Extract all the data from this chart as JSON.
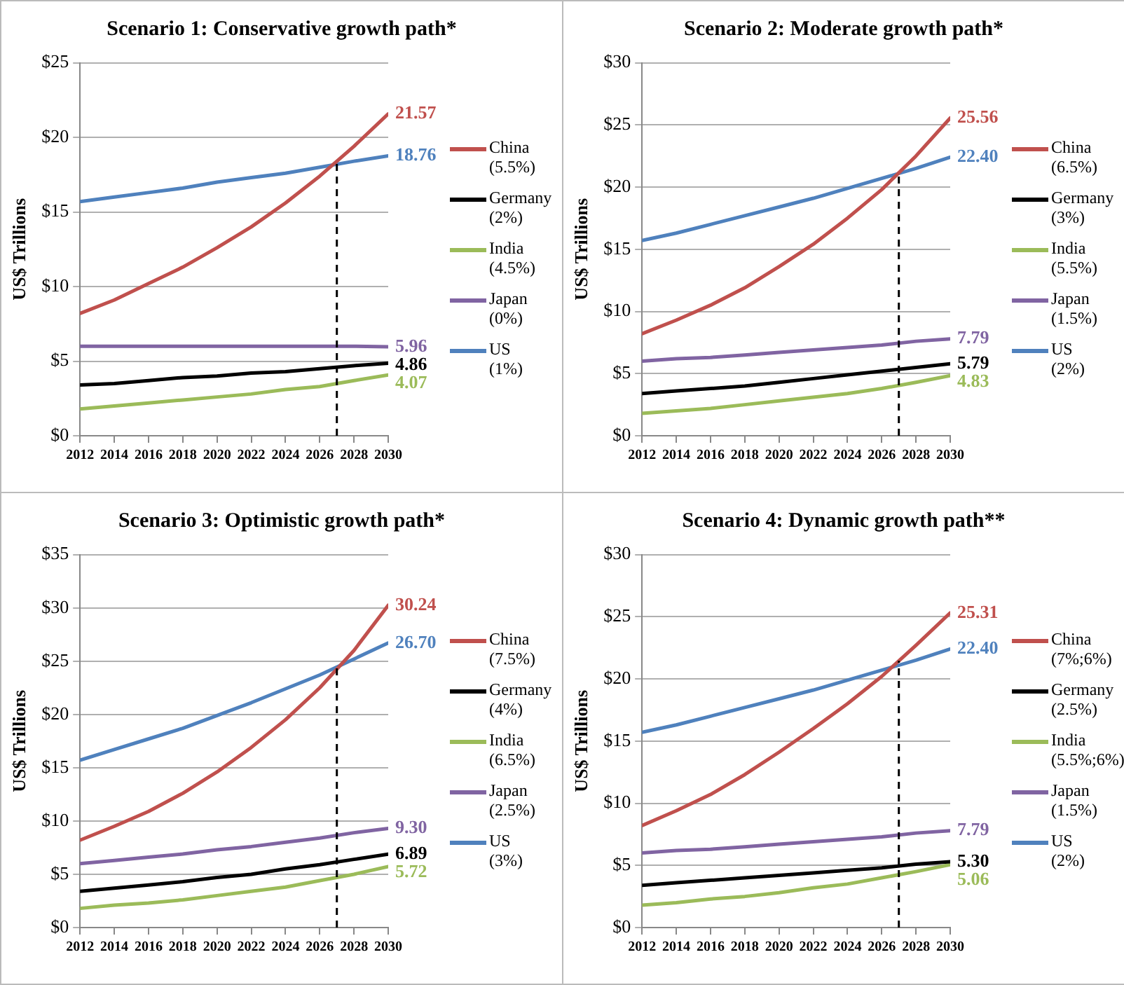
{
  "chart_data": [
    {
      "type": "line",
      "title": "Scenario 1: Conservative growth path*",
      "ylabel": "US$ Trillions",
      "x": [
        2012,
        2014,
        2016,
        2018,
        2020,
        2022,
        2024,
        2026,
        2028,
        2030
      ],
      "xlim": [
        2012,
        2030
      ],
      "xticks": [
        2012,
        2014,
        2016,
        2018,
        2020,
        2022,
        2024,
        2026,
        2028,
        2030
      ],
      "ylim": [
        0,
        25
      ],
      "yticks": [
        {
          "value": 0,
          "label": "$0"
        },
        {
          "value": 5,
          "label": "$5"
        },
        {
          "value": 10,
          "label": "$10"
        },
        {
          "value": 15,
          "label": "$15"
        },
        {
          "value": 20,
          "label": "$20"
        },
        {
          "value": 25,
          "label": "$25"
        }
      ],
      "grid": "y",
      "legend": "right",
      "marker": "none",
      "line_style": "solid",
      "ref_lines": [
        {
          "axis": "x",
          "value": 2027,
          "color": "#000000",
          "line_style": "dashed"
        }
      ],
      "series": [
        {
          "name": "China (5.5%)",
          "color": "#c0504d",
          "values": [
            8.2,
            9.1,
            10.2,
            11.3,
            12.6,
            14.0,
            15.6,
            17.4,
            19.4,
            21.57
          ],
          "value_labels": [
            null,
            null,
            null,
            null,
            null,
            null,
            null,
            null,
            null,
            "21.57"
          ]
        },
        {
          "name": "Germany (2%)",
          "color": "#000000",
          "values": [
            3.4,
            3.5,
            3.7,
            3.9,
            4.0,
            4.2,
            4.3,
            4.5,
            4.7,
            4.86
          ],
          "value_labels": [
            null,
            null,
            null,
            null,
            null,
            null,
            null,
            null,
            null,
            "4.86"
          ]
        },
        {
          "name": "India (4.5%)",
          "color": "#9bbb59",
          "values": [
            1.8,
            2.0,
            2.2,
            2.4,
            2.6,
            2.8,
            3.1,
            3.3,
            3.7,
            4.07
          ],
          "value_labels": [
            null,
            null,
            null,
            null,
            null,
            null,
            null,
            null,
            null,
            "4.07"
          ]
        },
        {
          "name": "Japan (0%)",
          "color": "#8064a2",
          "values": [
            6.0,
            6.0,
            6.0,
            6.0,
            6.0,
            6.0,
            6.0,
            6.0,
            6.0,
            5.96
          ],
          "value_labels": [
            null,
            null,
            null,
            null,
            null,
            null,
            null,
            null,
            null,
            "5.96"
          ]
        },
        {
          "name": "US (1%)",
          "color": "#4f81bd",
          "values": [
            15.7,
            16.0,
            16.3,
            16.6,
            17.0,
            17.3,
            17.6,
            18.0,
            18.4,
            18.76
          ],
          "value_labels": [
            null,
            null,
            null,
            null,
            null,
            null,
            null,
            null,
            null,
            "18.76"
          ]
        }
      ]
    },
    {
      "type": "line",
      "title": "Scenario 2: Moderate growth path*",
      "ylabel": "US$ Trillions",
      "x": [
        2012,
        2014,
        2016,
        2018,
        2020,
        2022,
        2024,
        2026,
        2028,
        2030
      ],
      "xlim": [
        2012,
        2030
      ],
      "xticks": [
        2012,
        2014,
        2016,
        2018,
        2020,
        2022,
        2024,
        2026,
        2028,
        2030
      ],
      "ylim": [
        0,
        30
      ],
      "yticks": [
        {
          "value": 0,
          "label": "$0"
        },
        {
          "value": 5,
          "label": "$5"
        },
        {
          "value": 10,
          "label": "$10"
        },
        {
          "value": 15,
          "label": "$15"
        },
        {
          "value": 20,
          "label": "$20"
        },
        {
          "value": 25,
          "label": "$25"
        },
        {
          "value": 30,
          "label": "$30"
        }
      ],
      "grid": "y",
      "legend": "right",
      "marker": "none",
      "line_style": "solid",
      "ref_lines": [
        {
          "axis": "x",
          "value": 2027,
          "color": "#000000",
          "line_style": "dashed"
        }
      ],
      "series": [
        {
          "name": "China (6.5%)",
          "color": "#c0504d",
          "values": [
            8.2,
            9.3,
            10.5,
            11.9,
            13.6,
            15.4,
            17.5,
            19.8,
            22.5,
            25.56
          ],
          "value_labels": [
            null,
            null,
            null,
            null,
            null,
            null,
            null,
            null,
            null,
            "25.56"
          ]
        },
        {
          "name": "Germany (3%)",
          "color": "#000000",
          "values": [
            3.4,
            3.6,
            3.8,
            4.0,
            4.3,
            4.6,
            4.9,
            5.2,
            5.5,
            5.79
          ],
          "value_labels": [
            null,
            null,
            null,
            null,
            null,
            null,
            null,
            null,
            null,
            "5.79"
          ]
        },
        {
          "name": "India (5.5%)",
          "color": "#9bbb59",
          "values": [
            1.8,
            2.0,
            2.2,
            2.5,
            2.8,
            3.1,
            3.4,
            3.8,
            4.3,
            4.83
          ],
          "value_labels": [
            null,
            null,
            null,
            null,
            null,
            null,
            null,
            null,
            null,
            "4.83"
          ]
        },
        {
          "name": "Japan (1.5%)",
          "color": "#8064a2",
          "values": [
            6.0,
            6.2,
            6.3,
            6.5,
            6.7,
            6.9,
            7.1,
            7.3,
            7.6,
            7.79
          ],
          "value_labels": [
            null,
            null,
            null,
            null,
            null,
            null,
            null,
            null,
            null,
            "7.79"
          ]
        },
        {
          "name": "US (2%)",
          "color": "#4f81bd",
          "values": [
            15.7,
            16.3,
            17.0,
            17.7,
            18.4,
            19.1,
            19.9,
            20.7,
            21.5,
            22.4
          ],
          "value_labels": [
            null,
            null,
            null,
            null,
            null,
            null,
            null,
            null,
            null,
            "22.40"
          ]
        }
      ]
    },
    {
      "type": "line",
      "title": "Scenario 3: Optimistic growth path*",
      "ylabel": "US$ Trillions",
      "x": [
        2012,
        2014,
        2016,
        2018,
        2020,
        2022,
        2024,
        2026,
        2028,
        2030
      ],
      "xlim": [
        2012,
        2030
      ],
      "xticks": [
        2012,
        2014,
        2016,
        2018,
        2020,
        2022,
        2024,
        2026,
        2028,
        2030
      ],
      "ylim": [
        0,
        35
      ],
      "yticks": [
        {
          "value": 0,
          "label": "$0"
        },
        {
          "value": 5,
          "label": "$5"
        },
        {
          "value": 10,
          "label": "$10"
        },
        {
          "value": 15,
          "label": "$15"
        },
        {
          "value": 20,
          "label": "$20"
        },
        {
          "value": 25,
          "label": "$25"
        },
        {
          "value": 30,
          "label": "$30"
        },
        {
          "value": 35,
          "label": "$35"
        }
      ],
      "grid": "y",
      "legend": "right",
      "marker": "none",
      "line_style": "solid",
      "ref_lines": [
        {
          "axis": "x",
          "value": 2027,
          "color": "#000000",
          "line_style": "dashed"
        }
      ],
      "series": [
        {
          "name": "China (7.5%)",
          "color": "#c0504d",
          "values": [
            8.2,
            9.5,
            10.9,
            12.6,
            14.6,
            16.9,
            19.5,
            22.5,
            26.0,
            30.24
          ],
          "value_labels": [
            null,
            null,
            null,
            null,
            null,
            null,
            null,
            null,
            null,
            "30.24"
          ]
        },
        {
          "name": "Germany (4%)",
          "color": "#000000",
          "values": [
            3.4,
            3.7,
            4.0,
            4.3,
            4.7,
            5.0,
            5.5,
            5.9,
            6.4,
            6.89
          ],
          "value_labels": [
            null,
            null,
            null,
            null,
            null,
            null,
            null,
            null,
            null,
            "6.89"
          ]
        },
        {
          "name": "India (6.5%)",
          "color": "#9bbb59",
          "values": [
            1.8,
            2.1,
            2.3,
            2.6,
            3.0,
            3.4,
            3.8,
            4.4,
            5.0,
            5.72
          ],
          "value_labels": [
            null,
            null,
            null,
            null,
            null,
            null,
            null,
            null,
            null,
            "5.72"
          ]
        },
        {
          "name": "Japan (2.5%)",
          "color": "#8064a2",
          "values": [
            6.0,
            6.3,
            6.6,
            6.9,
            7.3,
            7.6,
            8.0,
            8.4,
            8.9,
            9.3
          ],
          "value_labels": [
            null,
            null,
            null,
            null,
            null,
            null,
            null,
            null,
            null,
            "9.30"
          ]
        },
        {
          "name": "US (3%)",
          "color": "#4f81bd",
          "values": [
            15.7,
            16.7,
            17.7,
            18.7,
            19.9,
            21.1,
            22.4,
            23.7,
            25.2,
            26.7
          ],
          "value_labels": [
            null,
            null,
            null,
            null,
            null,
            null,
            null,
            null,
            null,
            "26.70"
          ]
        }
      ]
    },
    {
      "type": "line",
      "title": "Scenario 4: Dynamic growth path**",
      "ylabel": "US$ Trillions",
      "x": [
        2012,
        2014,
        2016,
        2018,
        2020,
        2022,
        2024,
        2026,
        2028,
        2030
      ],
      "xlim": [
        2012,
        2030
      ],
      "xticks": [
        2012,
        2014,
        2016,
        2018,
        2020,
        2022,
        2024,
        2026,
        2028,
        2030
      ],
      "ylim": [
        0,
        30
      ],
      "yticks": [
        {
          "value": 0,
          "label": "$0"
        },
        {
          "value": 5,
          "label": "$5"
        },
        {
          "value": 10,
          "label": "$10"
        },
        {
          "value": 15,
          "label": "$15"
        },
        {
          "value": 20,
          "label": "$20"
        },
        {
          "value": 25,
          "label": "$25"
        },
        {
          "value": 30,
          "label": "$30"
        }
      ],
      "grid": "y",
      "legend": "right",
      "marker": "none",
      "line_style": "solid",
      "ref_lines": [
        {
          "axis": "x",
          "value": 2027,
          "color": "#000000",
          "line_style": "dashed"
        }
      ],
      "series": [
        {
          "name": "China (7%;6%)",
          "color": "#c0504d",
          "values": [
            8.2,
            9.4,
            10.7,
            12.3,
            14.1,
            16.0,
            18.0,
            20.2,
            22.7,
            25.31
          ],
          "value_labels": [
            null,
            null,
            null,
            null,
            null,
            null,
            null,
            null,
            null,
            "25.31"
          ]
        },
        {
          "name": "Germany (2.5%)",
          "color": "#000000",
          "values": [
            3.4,
            3.6,
            3.8,
            4.0,
            4.2,
            4.4,
            4.6,
            4.8,
            5.1,
            5.3
          ],
          "value_labels": [
            null,
            null,
            null,
            null,
            null,
            null,
            null,
            null,
            null,
            "5.30"
          ]
        },
        {
          "name": "India (5.5%;6%)",
          "color": "#9bbb59",
          "values": [
            1.8,
            2.0,
            2.3,
            2.5,
            2.8,
            3.2,
            3.5,
            4.0,
            4.5,
            5.06
          ],
          "value_labels": [
            null,
            null,
            null,
            null,
            null,
            null,
            null,
            null,
            null,
            "5.06"
          ]
        },
        {
          "name": "Japan (1.5%)",
          "color": "#8064a2",
          "values": [
            6.0,
            6.2,
            6.3,
            6.5,
            6.7,
            6.9,
            7.1,
            7.3,
            7.6,
            7.79
          ],
          "value_labels": [
            null,
            null,
            null,
            null,
            null,
            null,
            null,
            null,
            null,
            "7.79"
          ]
        },
        {
          "name": "US (2%)",
          "color": "#4f81bd",
          "values": [
            15.7,
            16.3,
            17.0,
            17.7,
            18.4,
            19.1,
            19.9,
            20.7,
            21.5,
            22.4
          ],
          "value_labels": [
            null,
            null,
            null,
            null,
            null,
            null,
            null,
            null,
            null,
            "22.40"
          ]
        }
      ]
    }
  ]
}
